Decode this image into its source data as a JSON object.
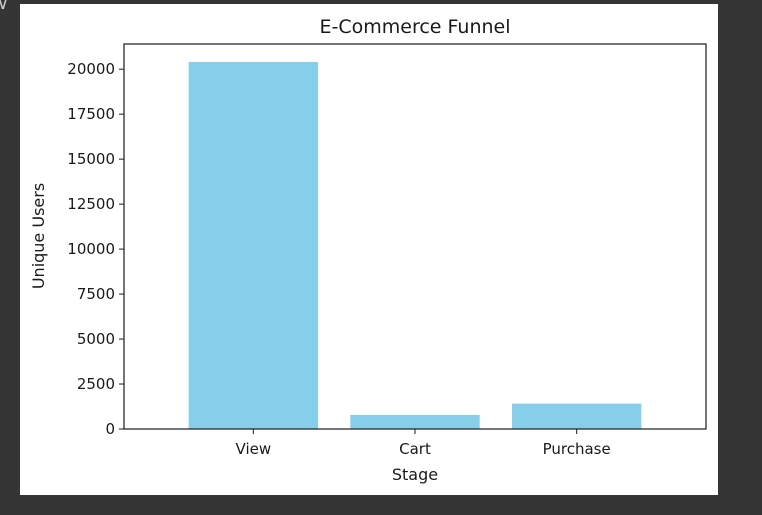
{
  "colors": {
    "background": "#353535",
    "figure": "#ffffff",
    "bar": "#87ceeb",
    "axis": "#1a1a1a"
  },
  "chevron_icon": "chevron-down-icon",
  "chart_data": {
    "type": "bar",
    "title": "E-Commerce Funnel",
    "xlabel": "Stage",
    "ylabel": "Unique Users",
    "categories": [
      "View",
      "Cart",
      "Purchase"
    ],
    "values": [
      20400,
      780,
      1410
    ],
    "ylim": [
      0,
      21400
    ],
    "yticks": [
      0,
      2500,
      5000,
      7500,
      10000,
      12500,
      15000,
      17500,
      20000
    ],
    "ytick_labels": [
      "0",
      "2500",
      "5000",
      "7500",
      "10000",
      "12500",
      "15000",
      "17500",
      "20000"
    ],
    "grid": false,
    "legend": "none"
  }
}
